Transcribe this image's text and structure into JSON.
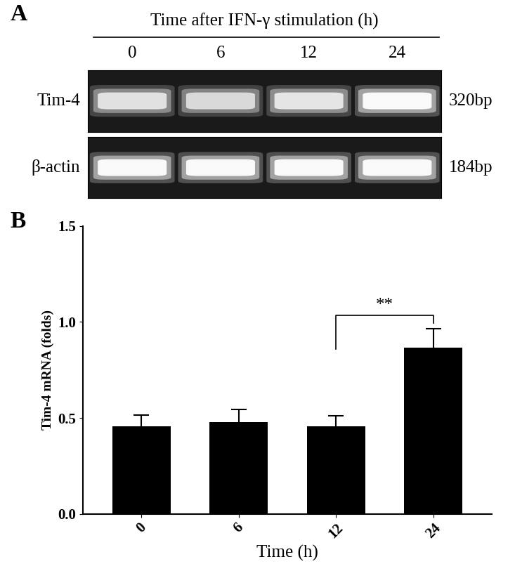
{
  "gel": {
    "panel": "A",
    "header": "Time after IFN-γ stimulation (h)",
    "lanes": [
      "0",
      "6",
      "12",
      "24"
    ],
    "rows": [
      {
        "label": "Tim-4",
        "size": "320bp"
      },
      {
        "label": "β-actin",
        "size": "184bp"
      }
    ]
  },
  "chart_data": {
    "type": "bar",
    "panel": "B",
    "categories": [
      "0",
      "6",
      "12",
      "24"
    ],
    "values": [
      0.455,
      0.478,
      0.455,
      0.865
    ],
    "errors": [
      0.06,
      0.067,
      0.055,
      0.1
    ],
    "color": "#000000",
    "x_label": "Time (h)",
    "y_label": "Tim-4 mRNA (folds)",
    "ylim": [
      0.0,
      1.5
    ],
    "yticks": [
      0.0,
      0.5,
      1.0,
      1.5
    ],
    "annotations": [
      {
        "text": "**",
        "from": "12",
        "to": "24"
      }
    ]
  }
}
